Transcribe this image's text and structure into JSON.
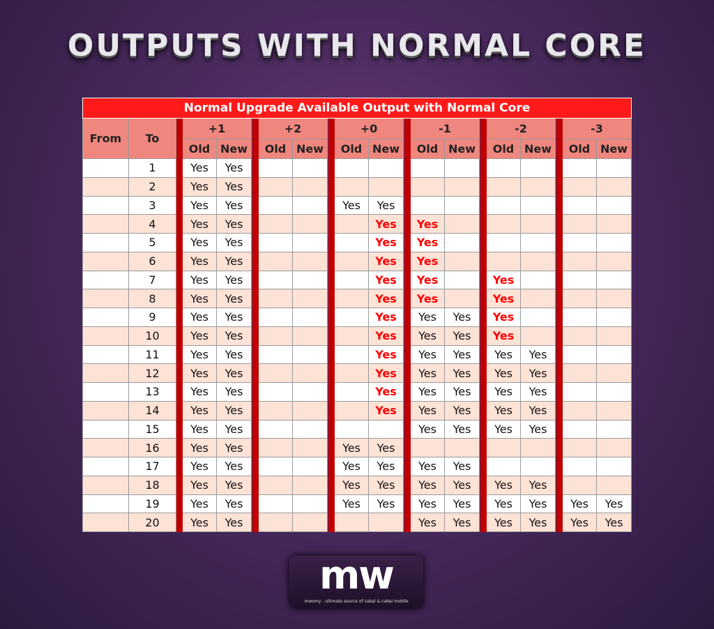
{
  "header": {
    "title": "OUTPUTS WITH NORMAL CORE"
  },
  "table": {
    "title": "Normal Upgrade Available Output with Normal Core",
    "from_label": "From",
    "to_label": "To",
    "groups": [
      "+1",
      "+2",
      "+0",
      "-1",
      "-2",
      "-3"
    ],
    "sub_labels": [
      "Old",
      "New"
    ],
    "rows": [
      {
        "to": 1,
        "cells": [
          "Yes",
          "Yes",
          null,
          null,
          null,
          null,
          null,
          null,
          null,
          null,
          null,
          null
        ]
      },
      {
        "to": 2,
        "cells": [
          "Yes",
          "Yes",
          null,
          null,
          null,
          null,
          null,
          null,
          null,
          null,
          null,
          null
        ]
      },
      {
        "to": 3,
        "cells": [
          "Yes",
          "Yes",
          null,
          null,
          "Yes",
          "Yes",
          null,
          null,
          null,
          null,
          null,
          null
        ]
      },
      {
        "to": 4,
        "cells": [
          "Yes",
          "Yes",
          null,
          null,
          null,
          {
            "text": "Yes",
            "color": "#ff0000"
          },
          {
            "text": "Yes",
            "color": "#ff0000"
          },
          null,
          null,
          null,
          null,
          null
        ]
      },
      {
        "to": 5,
        "cells": [
          "Yes",
          "Yes",
          null,
          null,
          null,
          {
            "text": "Yes",
            "color": "#ff0000"
          },
          {
            "text": "Yes",
            "color": "#ff0000"
          },
          null,
          null,
          null,
          null,
          null
        ]
      },
      {
        "to": 6,
        "cells": [
          "Yes",
          "Yes",
          null,
          null,
          null,
          {
            "text": "Yes",
            "color": "#ff0000"
          },
          {
            "text": "Yes",
            "color": "#ff0000"
          },
          null,
          null,
          null,
          null,
          null
        ]
      },
      {
        "to": 7,
        "cells": [
          "Yes",
          "Yes",
          null,
          null,
          null,
          {
            "text": "Yes",
            "color": "#ff0000"
          },
          {
            "text": "Yes",
            "color": "#ff0000"
          },
          null,
          {
            "text": "Yes",
            "color": "#ff0000"
          },
          null,
          null,
          null
        ]
      },
      {
        "to": 8,
        "cells": [
          "Yes",
          "Yes",
          null,
          null,
          null,
          {
            "text": "Yes",
            "color": "#ff0000"
          },
          {
            "text": "Yes",
            "color": "#ff0000"
          },
          null,
          {
            "text": "Yes",
            "color": "#ff0000"
          },
          null,
          null,
          null
        ]
      },
      {
        "to": 9,
        "cells": [
          "Yes",
          "Yes",
          null,
          null,
          null,
          {
            "text": "Yes",
            "color": "#ff0000"
          },
          "Yes",
          "Yes",
          {
            "text": "Yes",
            "color": "#ff0000"
          },
          null,
          null,
          null
        ]
      },
      {
        "to": 10,
        "cells": [
          "Yes",
          "Yes",
          null,
          null,
          null,
          {
            "text": "Yes",
            "color": "#ff0000"
          },
          "Yes",
          "Yes",
          {
            "text": "Yes",
            "color": "#ff0000"
          },
          null,
          null,
          null
        ]
      },
      {
        "to": 11,
        "cells": [
          "Yes",
          "Yes",
          null,
          null,
          null,
          {
            "text": "Yes",
            "color": "#ff0000"
          },
          "Yes",
          "Yes",
          "Yes",
          "Yes",
          null,
          null
        ]
      },
      {
        "to": 12,
        "cells": [
          "Yes",
          "Yes",
          null,
          null,
          null,
          {
            "text": "Yes",
            "color": "#ff0000"
          },
          "Yes",
          "Yes",
          "Yes",
          "Yes",
          null,
          null
        ]
      },
      {
        "to": 13,
        "cells": [
          "Yes",
          "Yes",
          null,
          null,
          null,
          {
            "text": "Yes",
            "color": "#ff0000"
          },
          "Yes",
          "Yes",
          "Yes",
          "Yes",
          null,
          null
        ]
      },
      {
        "to": 14,
        "cells": [
          "Yes",
          "Yes",
          null,
          null,
          null,
          {
            "text": "Yes",
            "color": "#ff0000"
          },
          "Yes",
          "Yes",
          "Yes",
          "Yes",
          null,
          null
        ]
      },
      {
        "to": 15,
        "cells": [
          "Yes",
          "Yes",
          null,
          null,
          null,
          null,
          "Yes",
          "Yes",
          "Yes",
          "Yes",
          null,
          null
        ]
      },
      {
        "to": 16,
        "cells": [
          "Yes",
          "Yes",
          null,
          null,
          "Yes",
          "Yes",
          null,
          null,
          null,
          null,
          null,
          null
        ]
      },
      {
        "to": 17,
        "cells": [
          "Yes",
          "Yes",
          null,
          null,
          "Yes",
          "Yes",
          "Yes",
          "Yes",
          null,
          null,
          null,
          null
        ]
      },
      {
        "to": 18,
        "cells": [
          "Yes",
          "Yes",
          null,
          null,
          "Yes",
          "Yes",
          "Yes",
          "Yes",
          "Yes",
          "Yes",
          null,
          null
        ]
      },
      {
        "to": 19,
        "cells": [
          "Yes",
          "Yes",
          null,
          null,
          "Yes",
          "Yes",
          "Yes",
          "Yes",
          "Yes",
          "Yes",
          "Yes",
          "Yes"
        ]
      },
      {
        "to": 20,
        "cells": [
          "Yes",
          "Yes",
          null,
          null,
          null,
          null,
          "Yes",
          "Yes",
          "Yes",
          "Yes",
          "Yes",
          "Yes"
        ]
      }
    ]
  },
  "logo": {
    "mark": "mw",
    "tagline": "mwomy . ultimate source of cabal & cabal mobile"
  }
}
